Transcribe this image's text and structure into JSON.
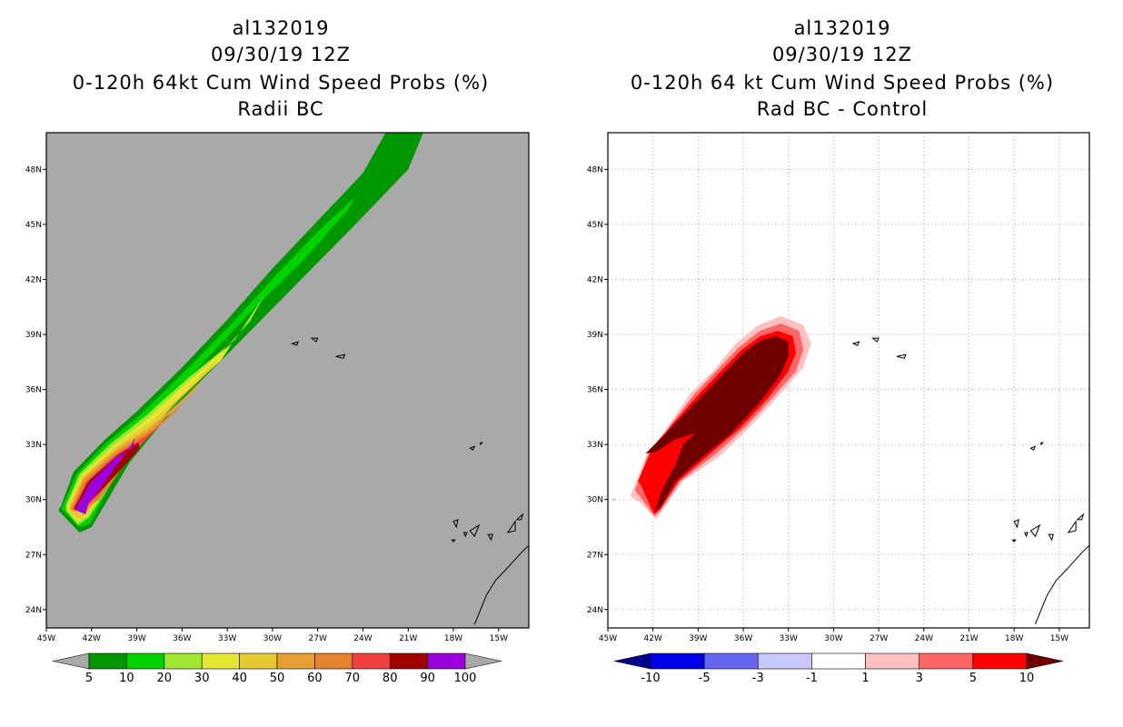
{
  "chart_data": [
    {
      "type": "heatmap",
      "storm_id": "al132019",
      "date": "09/30/19 12Z",
      "title": "0-120h 64kt Cum Wind Speed Probs (%)",
      "subtitle": "Radii BC",
      "xlim": [
        -45,
        -13
      ],
      "ylim": [
        23,
        50
      ],
      "x_ticks": [
        "45W",
        "42W",
        "39W",
        "36W",
        "33W",
        "30W",
        "27W",
        "24W",
        "21W",
        "18W",
        "15W"
      ],
      "y_ticks": [
        "24N",
        "27N",
        "30N",
        "33N",
        "36N",
        "39N",
        "42N",
        "45N",
        "48N"
      ],
      "background": "#a9a9a9",
      "legend": {
        "labels": [
          "5",
          "10",
          "20",
          "30",
          "40",
          "50",
          "60",
          "70",
          "80",
          "90",
          "100"
        ],
        "colors": [
          "#009600",
          "#00d200",
          "#a0e632",
          "#e6e632",
          "#e6c832",
          "#e6a032",
          "#e6822d",
          "#f04040",
          "#a00000",
          "#9b00dc"
        ],
        "end_colors": [
          "#a9a9a9",
          "#a9a9a9"
        ]
      }
    },
    {
      "type": "heatmap",
      "storm_id": "al132019",
      "date": "09/30/19 12Z",
      "title": "0-120h 64 kt Cum Wind Speed Probs (%)",
      "subtitle": "Rad BC - Control",
      "xlim": [
        -45,
        -13
      ],
      "ylim": [
        23,
        50
      ],
      "x_ticks": [
        "45W",
        "42W",
        "39W",
        "36W",
        "33W",
        "30W",
        "27W",
        "24W",
        "21W",
        "18W",
        "15W"
      ],
      "y_ticks": [
        "24N",
        "27N",
        "30N",
        "33N",
        "36N",
        "39N",
        "42N",
        "45N",
        "48N"
      ],
      "background": "#ffffff",
      "legend": {
        "labels": [
          "-10",
          "-5",
          "-3",
          "-1",
          "1",
          "3",
          "5",
          "10"
        ],
        "colors": [
          "#0000e6",
          "#6464f0",
          "#c8c8ff",
          "#ffffff",
          "#ffc0c0",
          "#ff6666",
          "#ff0000"
        ],
        "end_colors": [
          "#00008b",
          "#6e0000"
        ]
      }
    }
  ]
}
